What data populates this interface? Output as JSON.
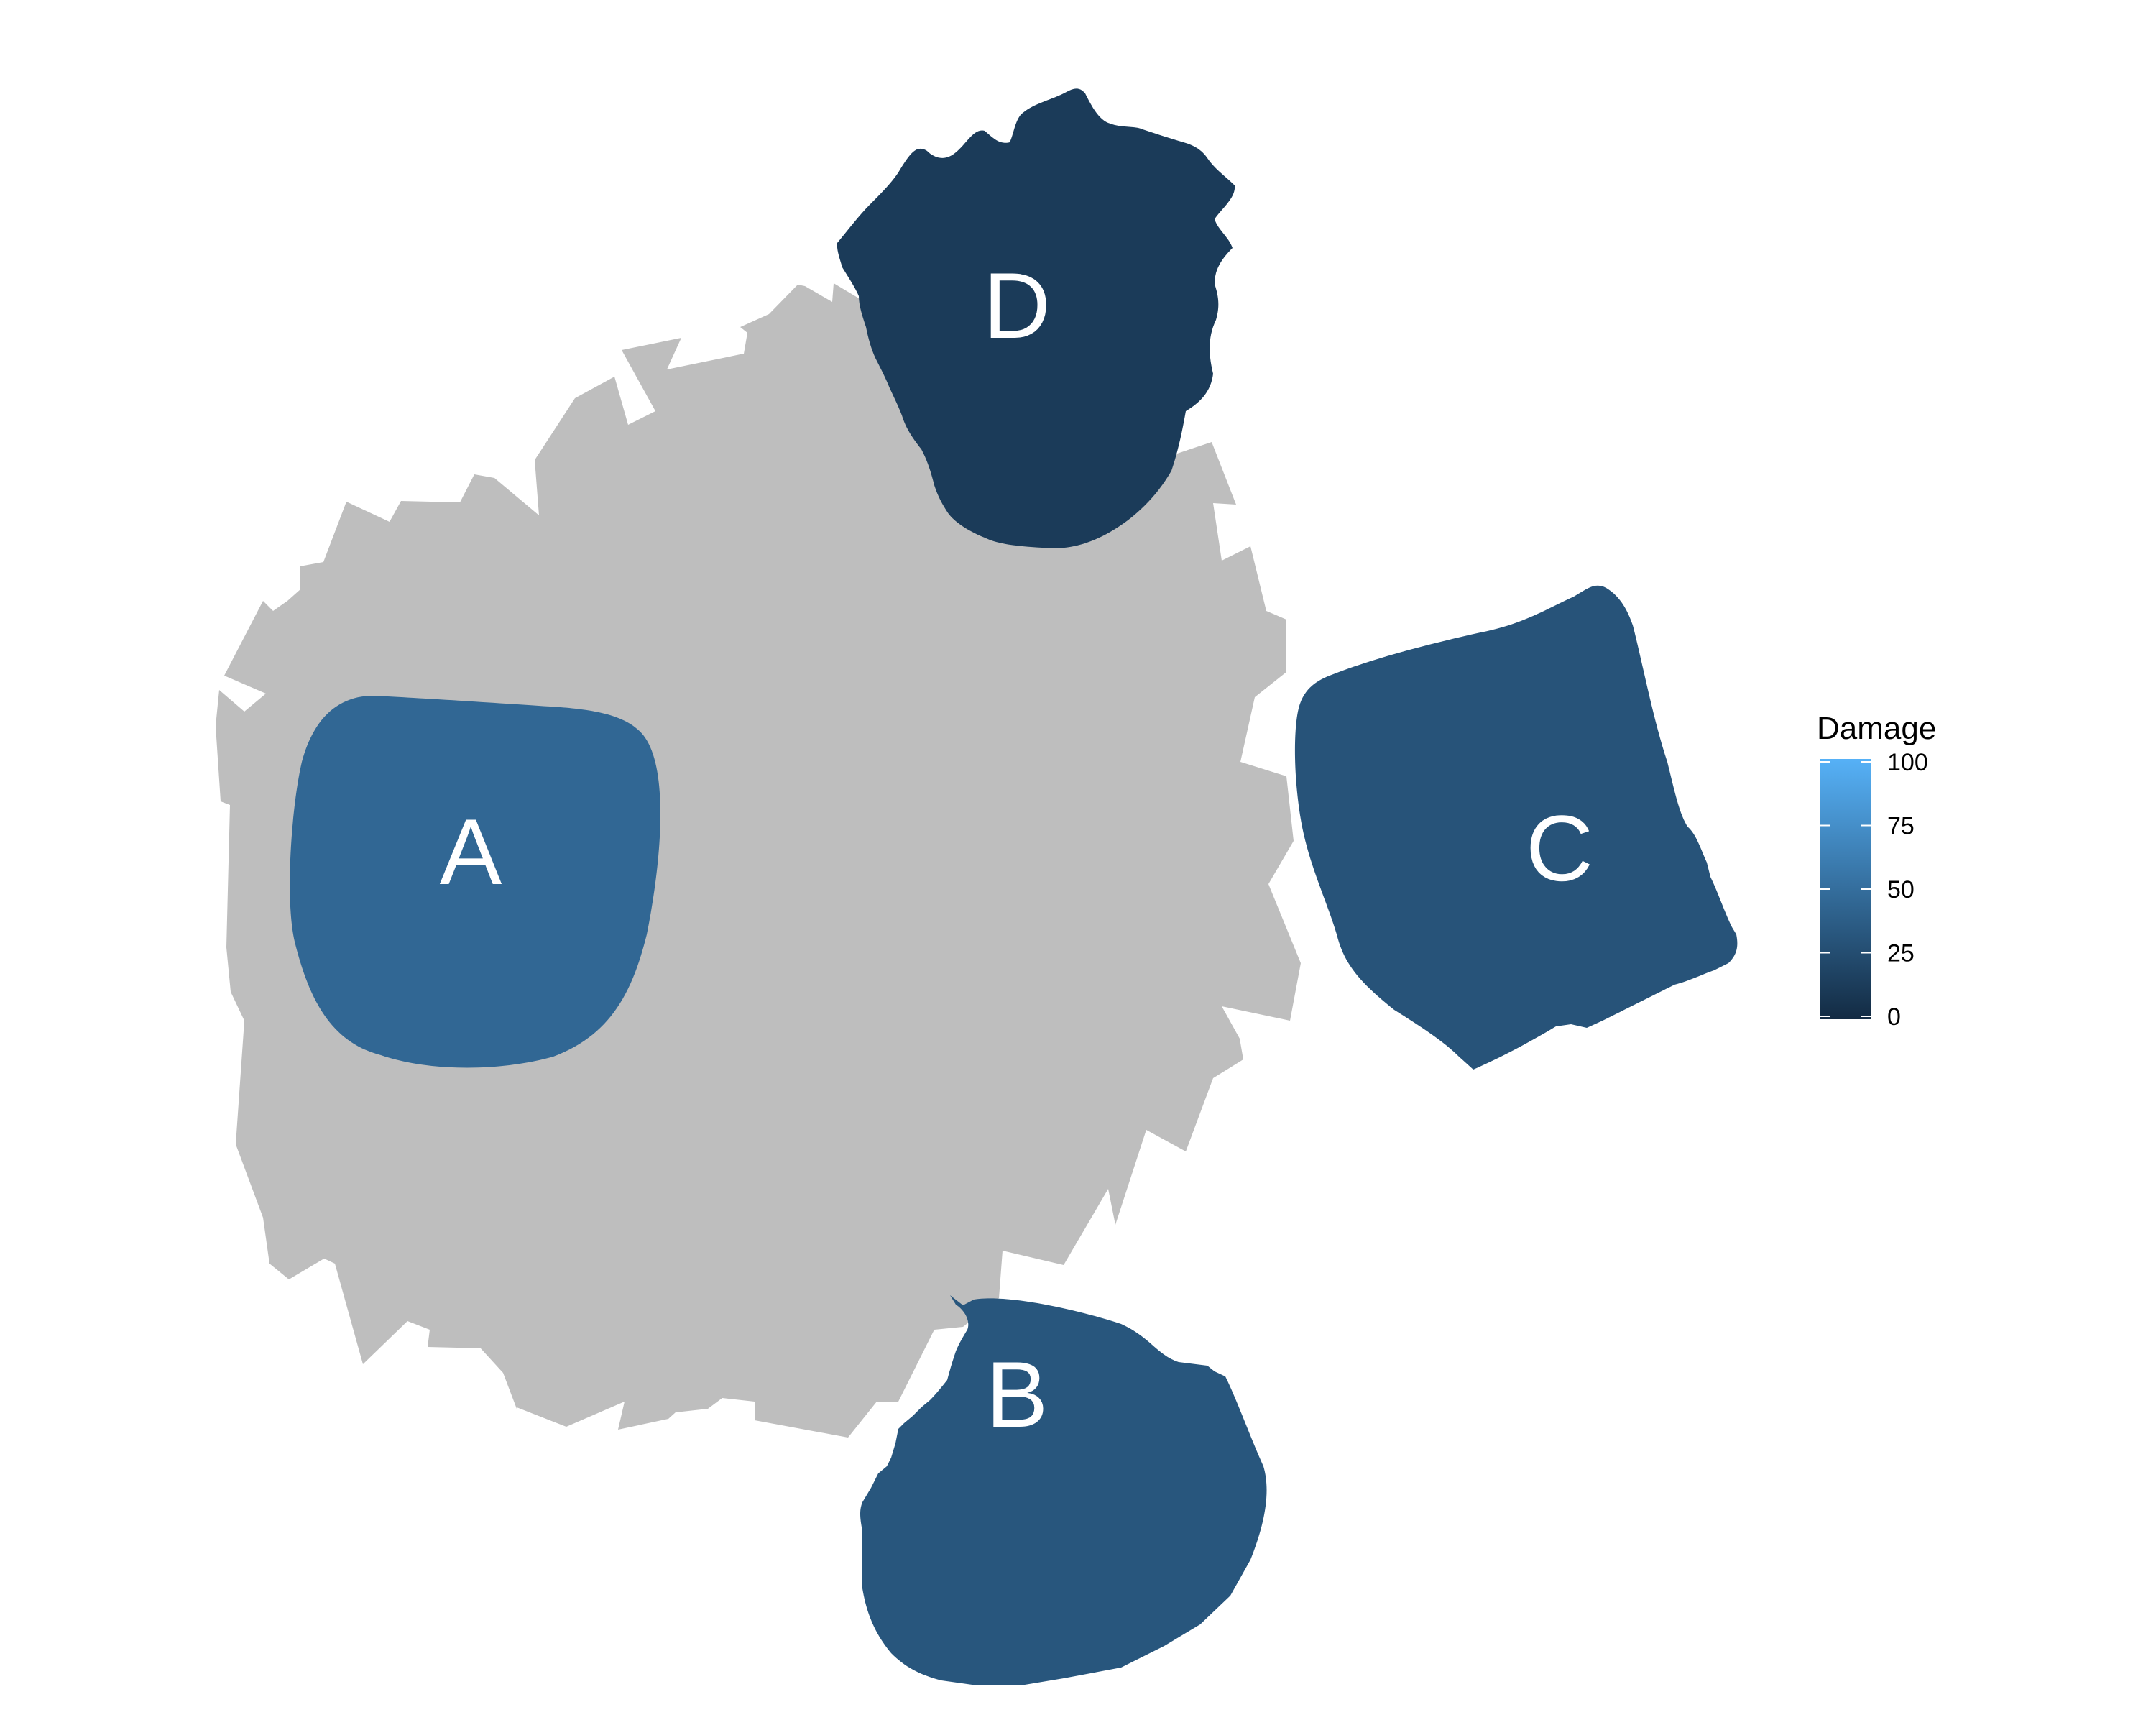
{
  "colors": {
    "background": "#ffffff",
    "base_fill": "#bebebe",
    "label_text": "#ffffff",
    "scale_low": "#132b43",
    "scale_high": "#56b1f7"
  },
  "chart_data": {
    "type": "heatmap",
    "title": "",
    "xlabel": "",
    "ylabel": "",
    "grid": false,
    "legend_position": "right",
    "regions": [
      {
        "label": "A",
        "damage": 45,
        "position": "left"
      },
      {
        "label": "B",
        "damage": 32,
        "position": "bottom"
      },
      {
        "label": "C",
        "damage": 30,
        "position": "right"
      },
      {
        "label": "D",
        "damage": 12,
        "position": "top"
      }
    ],
    "legend": {
      "title": "Damage",
      "limits": [
        0,
        100
      ],
      "ticks": [
        "0",
        "25",
        "50",
        "75",
        "100"
      ]
    }
  }
}
